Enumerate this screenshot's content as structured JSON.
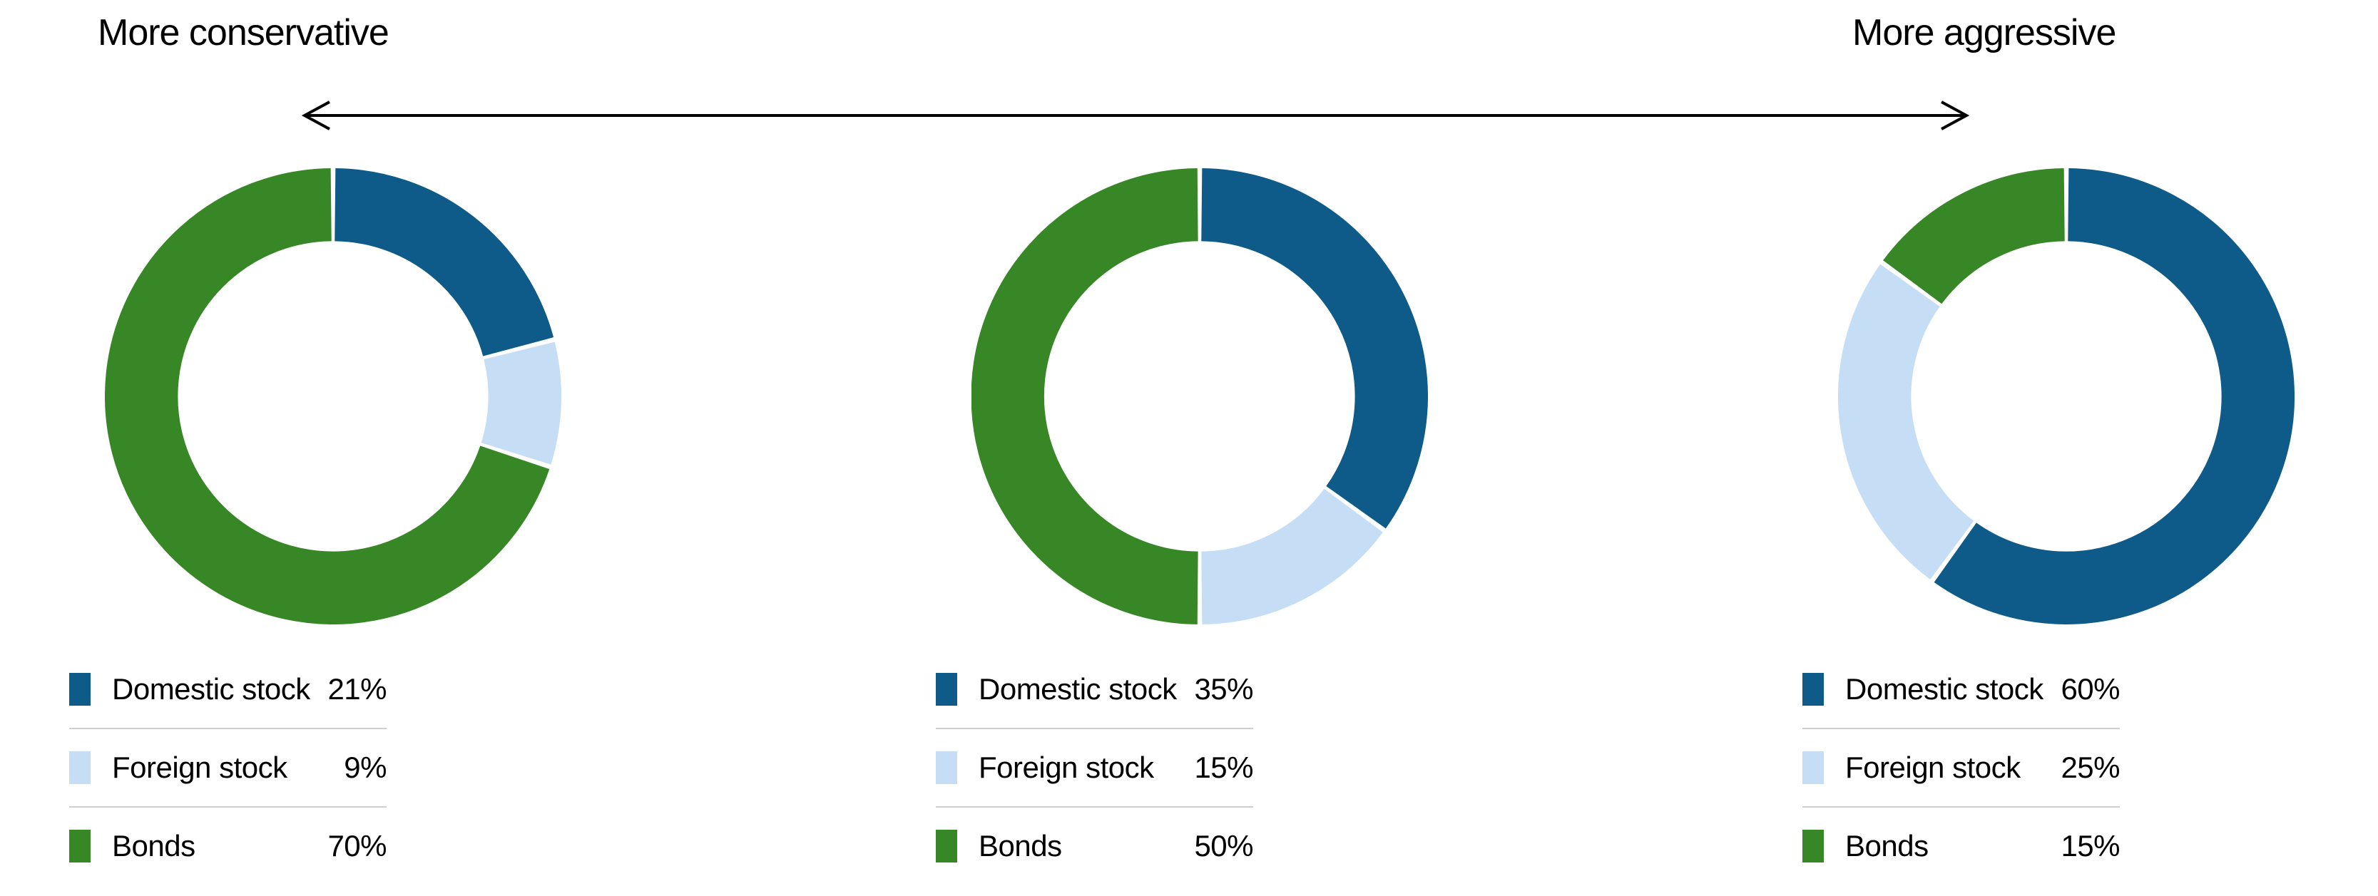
{
  "header": {
    "left_label": "More conservative",
    "right_label": "More aggressive"
  },
  "arrow": {
    "style": "double-headed",
    "color": "#000000"
  },
  "colors": {
    "domestic_stock": "#0e5a88",
    "foreign_stock": "#c6def5",
    "bonds": "#388727",
    "divider": "#cfcfcf",
    "text": "#000000",
    "background": "#ffffff"
  },
  "chart_data": [
    {
      "type": "pie",
      "subtype": "donut",
      "title": "",
      "position": "left",
      "legend_position": "bottom",
      "start_angle": 0,
      "direction": "clockwise",
      "inner_radius_ratio": 0.68,
      "labels": [
        "Domestic stock",
        "Foreign stock",
        "Bonds"
      ],
      "values": [
        21,
        9,
        70
      ],
      "display_values": [
        "21%",
        "9%",
        "70%"
      ],
      "colors": [
        "#0e5a88",
        "#c6def5",
        "#388727"
      ]
    },
    {
      "type": "pie",
      "subtype": "donut",
      "title": "",
      "position": "middle",
      "legend_position": "bottom",
      "start_angle": 0,
      "direction": "clockwise",
      "inner_radius_ratio": 0.68,
      "labels": [
        "Domestic stock",
        "Foreign stock",
        "Bonds"
      ],
      "values": [
        35,
        15,
        50
      ],
      "display_values": [
        "35%",
        "15%",
        "50%"
      ],
      "colors": [
        "#0e5a88",
        "#c6def5",
        "#388727"
      ]
    },
    {
      "type": "pie",
      "subtype": "donut",
      "title": "",
      "position": "right",
      "legend_position": "bottom",
      "start_angle": 0,
      "direction": "clockwise",
      "inner_radius_ratio": 0.68,
      "labels": [
        "Domestic stock",
        "Foreign stock",
        "Bonds"
      ],
      "values": [
        60,
        25,
        15
      ],
      "display_values": [
        "60%",
        "25%",
        "15%"
      ],
      "colors": [
        "#0e5a88",
        "#c6def5",
        "#388727"
      ]
    }
  ]
}
